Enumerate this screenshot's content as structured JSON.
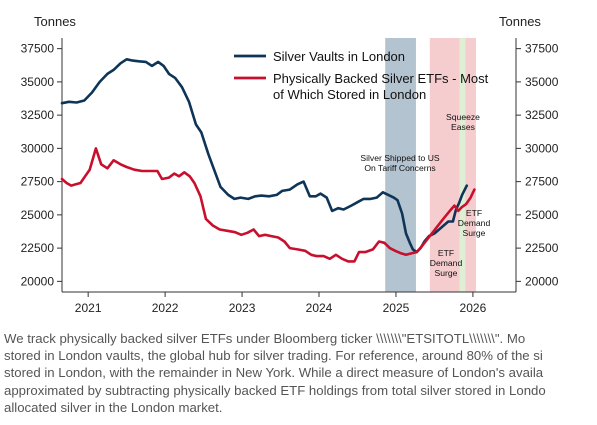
{
  "chart_data": {
    "type": "line",
    "y_unit_left": "Tonnes",
    "y_unit_right": "Tonnes",
    "ylim": [
      19200,
      38300
    ],
    "xlim": [
      2020.66,
      2026.56
    ],
    "yticks": [
      20000,
      22500,
      25000,
      27500,
      30000,
      32500,
      35000,
      37500
    ],
    "xticks": [
      "2021",
      "2022",
      "2023",
      "2024",
      "2025",
      "2026"
    ],
    "grid": false,
    "legend_position": "top-right",
    "series": [
      {
        "name": "Silver Vaults in London",
        "color": "#0e3457",
        "points": [
          [
            2020.66,
            33400
          ],
          [
            2020.75,
            33500
          ],
          [
            2020.85,
            33450
          ],
          [
            2020.95,
            33600
          ],
          [
            2021.05,
            34200
          ],
          [
            2021.15,
            35000
          ],
          [
            2021.25,
            35600
          ],
          [
            2021.33,
            35900
          ],
          [
            2021.42,
            36400
          ],
          [
            2021.5,
            36700
          ],
          [
            2021.58,
            36600
          ],
          [
            2021.66,
            36550
          ],
          [
            2021.75,
            36500
          ],
          [
            2021.83,
            36200
          ],
          [
            2021.91,
            36500
          ],
          [
            2021.98,
            36200
          ],
          [
            2022.05,
            35600
          ],
          [
            2022.13,
            35300
          ],
          [
            2022.22,
            34600
          ],
          [
            2022.31,
            33500
          ],
          [
            2022.4,
            31800
          ],
          [
            2022.47,
            31200
          ],
          [
            2022.56,
            29600
          ],
          [
            2022.63,
            28500
          ],
          [
            2022.72,
            27100
          ],
          [
            2022.82,
            26500
          ],
          [
            2022.9,
            26200
          ],
          [
            2022.98,
            26300
          ],
          [
            2023.08,
            26200
          ],
          [
            2023.17,
            26400
          ],
          [
            2023.25,
            26450
          ],
          [
            2023.35,
            26400
          ],
          [
            2023.45,
            26500
          ],
          [
            2023.52,
            26800
          ],
          [
            2023.62,
            26900
          ],
          [
            2023.72,
            27300
          ],
          [
            2023.8,
            27500
          ],
          [
            2023.88,
            26400
          ],
          [
            2023.96,
            26400
          ],
          [
            2024.02,
            26600
          ],
          [
            2024.1,
            26300
          ],
          [
            2024.17,
            25300
          ],
          [
            2024.25,
            25500
          ],
          [
            2024.32,
            25400
          ],
          [
            2024.42,
            25700
          ],
          [
            2024.5,
            25950
          ],
          [
            2024.58,
            26200
          ],
          [
            2024.67,
            26200
          ],
          [
            2024.75,
            26300
          ],
          [
            2024.83,
            26700
          ],
          [
            2024.9,
            26500
          ],
          [
            2024.97,
            26300
          ],
          [
            2025.02,
            26100
          ],
          [
            2025.08,
            25100
          ],
          [
            2025.13,
            23600
          ],
          [
            2025.18,
            22900
          ],
          [
            2025.22,
            22400
          ],
          [
            2025.27,
            22200
          ],
          [
            2025.32,
            22500
          ],
          [
            2025.37,
            23000
          ],
          [
            2025.43,
            23400
          ],
          [
            2025.5,
            23600
          ],
          [
            2025.56,
            23900
          ],
          [
            2025.62,
            24200
          ],
          [
            2025.68,
            24500
          ],
          [
            2025.74,
            24500
          ],
          [
            2025.78,
            25400
          ],
          [
            2025.82,
            25900
          ],
          [
            2025.86,
            26500
          ],
          [
            2025.92,
            27200
          ]
        ]
      },
      {
        "name": "Physically Backed Silver ETFs - Most of Which Stored in London",
        "color": "#c8102e",
        "points": [
          [
            2020.66,
            27700
          ],
          [
            2020.72,
            27400
          ],
          [
            2020.78,
            27200
          ],
          [
            2020.84,
            27300
          ],
          [
            2020.9,
            27400
          ],
          [
            2020.96,
            27900
          ],
          [
            2021.02,
            28400
          ],
          [
            2021.1,
            30000
          ],
          [
            2021.17,
            28800
          ],
          [
            2021.25,
            28500
          ],
          [
            2021.33,
            29100
          ],
          [
            2021.42,
            28800
          ],
          [
            2021.5,
            28600
          ],
          [
            2021.6,
            28400
          ],
          [
            2021.7,
            28300
          ],
          [
            2021.8,
            28300
          ],
          [
            2021.9,
            28300
          ],
          [
            2021.96,
            27700
          ],
          [
            2022.05,
            27800
          ],
          [
            2022.12,
            28100
          ],
          [
            2022.18,
            27900
          ],
          [
            2022.25,
            28200
          ],
          [
            2022.32,
            27900
          ],
          [
            2022.38,
            27400
          ],
          [
            2022.46,
            26400
          ],
          [
            2022.53,
            24700
          ],
          [
            2022.62,
            24200
          ],
          [
            2022.71,
            23900
          ],
          [
            2022.81,
            23800
          ],
          [
            2022.91,
            23700
          ],
          [
            2022.99,
            23500
          ],
          [
            2023.07,
            23650
          ],
          [
            2023.15,
            23900
          ],
          [
            2023.22,
            23400
          ],
          [
            2023.3,
            23500
          ],
          [
            2023.38,
            23400
          ],
          [
            2023.47,
            23300
          ],
          [
            2023.55,
            23000
          ],
          [
            2023.62,
            22500
          ],
          [
            2023.72,
            22400
          ],
          [
            2023.82,
            22300
          ],
          [
            2023.9,
            22000
          ],
          [
            2023.97,
            21900
          ],
          [
            2024.06,
            21900
          ],
          [
            2024.14,
            21700
          ],
          [
            2024.22,
            22000
          ],
          [
            2024.3,
            21700
          ],
          [
            2024.38,
            21500
          ],
          [
            2024.46,
            21500
          ],
          [
            2024.52,
            22200
          ],
          [
            2024.6,
            22200
          ],
          [
            2024.7,
            22400
          ],
          [
            2024.78,
            23000
          ],
          [
            2024.85,
            22900
          ],
          [
            2024.92,
            22500
          ],
          [
            2024.99,
            22300
          ],
          [
            2025.07,
            22100
          ],
          [
            2025.13,
            22000
          ],
          [
            2025.2,
            22100
          ],
          [
            2025.27,
            22200
          ],
          [
            2025.33,
            22600
          ],
          [
            2025.4,
            23100
          ],
          [
            2025.48,
            23700
          ],
          [
            2025.56,
            24300
          ],
          [
            2025.63,
            24800
          ],
          [
            2025.7,
            25300
          ],
          [
            2025.76,
            25700
          ],
          [
            2025.81,
            25300
          ],
          [
            2025.86,
            25600
          ],
          [
            2025.91,
            25800
          ],
          [
            2025.97,
            26300
          ],
          [
            2026.02,
            26900
          ]
        ]
      }
    ],
    "shaded_regions": [
      {
        "x0": 2024.86,
        "x1": 2025.26,
        "color": "#a7b8c8",
        "label": "Silver Shipped to US\nOn Tariff Concerns"
      },
      {
        "x0": 2025.44,
        "x1": 2025.83,
        "color": "#f5c4c7",
        "label": "ETF\nDemand\nSurge"
      },
      {
        "x0": 2025.83,
        "x1": 2025.9,
        "color": "#d8eccc",
        "label": "Squeeze\nEases"
      },
      {
        "x0": 2025.9,
        "x1": 2026.04,
        "color": "#f5c4c7",
        "label": "ETF\nDemand\nSurge"
      }
    ]
  },
  "caption": {
    "lines": [
      "We track physically backed silver ETFs under Bloomberg ticker \\\\\\\\\\\\\\\"ETSITOTL\\\\\\\\\\\\\\\". Mo",
      "stored in London vaults, the global hub for silver trading. For reference, around 80% of the si",
      "stored in London, with the remainder in New York. While a direct measure of London's availa",
      "approximated by subtracting physically backed ETF holdings from total silver stored in Londo",
      "allocated silver in the London market."
    ]
  }
}
